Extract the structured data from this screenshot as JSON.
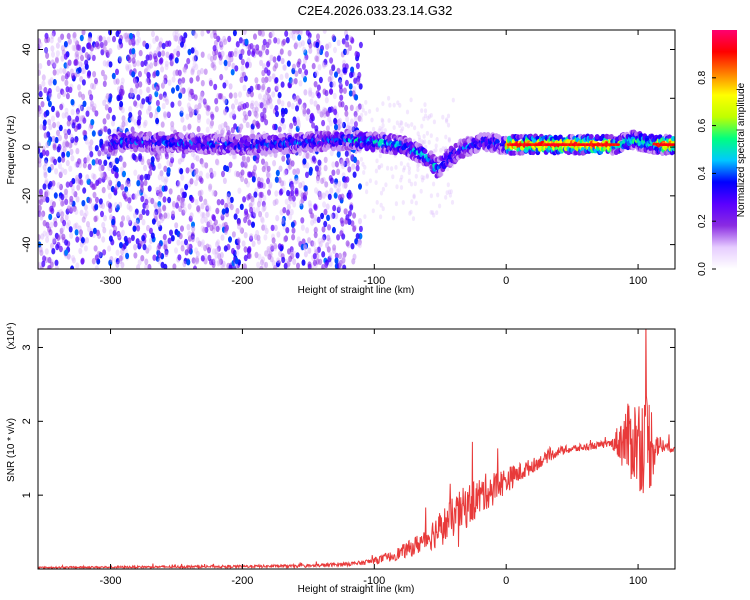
{
  "figure": {
    "title": "C2E4.2026.033.23.14.G32"
  },
  "chart_data": [
    {
      "type": "heatmap",
      "xlabel": "Height of straight line (km)",
      "ylabel": "Frequency (Hz)",
      "xlim": [
        -355,
        128
      ],
      "ylim": [
        -50,
        48
      ],
      "xticks": [
        -300,
        -200,
        -100,
        0,
        100
      ],
      "yticks": [
        -40,
        -20,
        0,
        20,
        40
      ],
      "colorbar": {
        "label": "Normalized spectral amplitude",
        "range": [
          0,
          1
        ],
        "ticks": [
          0.0,
          0.2,
          0.4,
          0.6,
          0.8
        ],
        "tick_labels": [
          "0.0",
          "0.2",
          "0.4",
          "0.6",
          "0.8"
        ],
        "colormap": [
          "#ffffff",
          "#e6ccff",
          "#8a2be2",
          "#5a00ff",
          "#0000ff",
          "#00c8ff",
          "#00ff80",
          "#c0ff00",
          "#ffff00",
          "#ff8000",
          "#ff0000",
          "#ff0070"
        ]
      },
      "ridge": {
        "x": [
          -300,
          -260,
          -220,
          -180,
          -150,
          -120,
          -95,
          -75,
          -60,
          -52,
          -45,
          -35,
          -25,
          -15,
          0,
          30,
          60,
          85,
          95,
          105,
          115,
          128
        ],
        "y": [
          2,
          2,
          1,
          1,
          2,
          3,
          2,
          0,
          -4,
          -9,
          -5,
          -1,
          1,
          2,
          1,
          1,
          1,
          1,
          3,
          2,
          1,
          1
        ]
      },
      "scatter_region": {
        "x_from": -355,
        "x_to": -110,
        "noise_level": 0.3
      }
    },
    {
      "type": "line",
      "xlabel": "Height of straight line (km)",
      "ylabel": "SNR (10 * v/v)",
      "y_multiplier": "(x10⁴)",
      "xlim": [
        -355,
        128
      ],
      "ylim": [
        0,
        3.25
      ],
      "xticks": [
        -300,
        -200,
        -100,
        0,
        100
      ],
      "yticks": [
        1,
        2,
        3
      ],
      "color": "#e83a3a",
      "envelope": {
        "x": [
          -355,
          -250,
          -150,
          -110,
          -90,
          -70,
          -50,
          -30,
          -15,
          0,
          20,
          40,
          60,
          80,
          90,
          100,
          108,
          115,
          128
        ],
        "y": [
          0.02,
          0.03,
          0.04,
          0.08,
          0.15,
          0.3,
          0.55,
          0.85,
          1.05,
          1.2,
          1.4,
          1.6,
          1.65,
          1.7,
          1.75,
          1.72,
          1.7,
          1.68,
          1.62
        ],
        "spread": [
          0.02,
          0.03,
          0.04,
          0.06,
          0.12,
          0.25,
          0.5,
          0.6,
          0.5,
          0.35,
          0.2,
          0.12,
          0.1,
          0.1,
          0.9,
          1.3,
          1.5,
          0.3,
          0.05
        ]
      }
    }
  ]
}
